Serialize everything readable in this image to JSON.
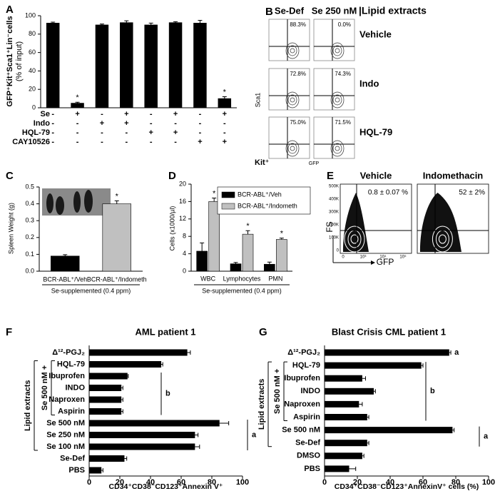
{
  "chart_data": [
    {
      "type": "bar",
      "panel": "A",
      "ylabel": [
        "GFP⁺Kit⁺Sca1⁺Lin⁻cells",
        "(% of input)"
      ],
      "values": [
        92,
        5,
        90,
        92.5,
        90,
        92.5,
        92,
        10
      ],
      "errors": [
        1,
        1,
        1,
        2,
        2,
        1,
        3,
        2
      ],
      "color": "#000000",
      "annotations": [
        null,
        "*",
        null,
        null,
        null,
        null,
        null,
        "*"
      ],
      "ylim": [
        0,
        100
      ],
      "yticks": [
        0,
        20,
        40,
        60,
        80,
        100
      ],
      "treatments": [
        {
          "name": "Se",
          "signs": [
            "-",
            "+",
            "-",
            "+",
            "-",
            "+",
            "-",
            "+"
          ]
        },
        {
          "name": "Indo",
          "signs": [
            "-",
            "-",
            "+",
            "+",
            "-",
            "-",
            "-",
            "-"
          ]
        },
        {
          "name": "HQL-79",
          "signs": [
            "-",
            "-",
            "-",
            "-",
            "+",
            "+",
            "-",
            "-"
          ]
        },
        {
          "name": "CAY10526",
          "signs": [
            "-",
            "-",
            "-",
            "-",
            "-",
            "-",
            "+",
            "+"
          ]
        }
      ]
    },
    {
      "type": "flow-grid",
      "panel": "B",
      "columns": [
        "Se-Def",
        "Se 250 nM"
      ],
      "header": "|Lipid extracts",
      "rows": [
        "Vehicle",
        "Indo",
        "HQL-79"
      ],
      "percentages": [
        [
          "88.3%",
          "0.0%"
        ],
        [
          "72.8%",
          "74.3%"
        ],
        [
          "75.0%",
          "71.5%"
        ]
      ],
      "ylabel": "Sca1",
      "corner_label": "Kit⁺",
      "xlabel": "GFP"
    },
    {
      "type": "bar",
      "panel": "C",
      "ylabel": "Spleen Weight (g)",
      "categories": [
        "BCR-ABL⁺/Veh",
        "BCR-ABL⁺/Indometh"
      ],
      "values": [
        0.09,
        0.4
      ],
      "errors": [
        0.008,
        0.018
      ],
      "colors": [
        "#000000",
        "#c0c0c0"
      ],
      "annotations": [
        null,
        "*"
      ],
      "ylim": [
        0,
        0.5
      ],
      "yticks": [
        {
          "value": 0,
          "label": "0.0"
        },
        0.1,
        0.2,
        0.3,
        0.4,
        0.5
      ],
      "group_label": "Se-supplemented (0.4 ppm)"
    },
    {
      "type": "grouped-bar",
      "panel": "D",
      "ylabel": "Cells (x1000/µl)",
      "categories": [
        "WBC",
        "Lymphocytes",
        "PMN"
      ],
      "series": [
        {
          "name": "BCR-ABL⁺/Veh",
          "color": "#000000",
          "values": [
            4.6,
            1.7,
            1.6
          ],
          "errors": [
            1.9,
            0.3,
            0.5
          ]
        },
        {
          "name": "BCR-ABL⁺/Indometh",
          "color": "#c0c0c0",
          "values": [
            16,
            8.5,
            7.3
          ],
          "errors": [
            0.8,
            0.8,
            0.3
          ],
          "annotations": [
            "*",
            "*",
            "*"
          ]
        }
      ],
      "ylim": [
        0,
        20
      ],
      "yticks": [
        0,
        4,
        8,
        12,
        16,
        20
      ],
      "group_label": "Se-supplemented (0.4 ppm)"
    },
    {
      "type": "flow-pair",
      "panel": "E",
      "titles": [
        "Vehicle",
        "Indomethacin"
      ],
      "percentages": [
        "0.8 ± 0.07 %",
        "52 ± 2%"
      ],
      "ylabel": "FS",
      "xlabel": "GFP",
      "fs_tick_labels": [
        "0",
        "100K",
        "200K",
        "300K",
        "400K",
        "500K"
      ],
      "gfp_tick_labels": [
        "0",
        "10³",
        "10⁴",
        "10⁵"
      ]
    },
    {
      "type": "hbar",
      "panel": "F",
      "title": "AML patient 1",
      "categories": [
        "Δ¹²-PGJ₂",
        "HQL-79",
        "Ibuprofen",
        "INDO",
        "Naproxen",
        "Aspirin",
        "Se 500 nM",
        "Se 250 nM",
        "Se 100 nM",
        "Se-Def",
        "PBS"
      ],
      "values": [
        64,
        47,
        25,
        21,
        21,
        21,
        85,
        69,
        69,
        23,
        8
      ],
      "errors": [
        2,
        1,
        0.5,
        1,
        1,
        1,
        6,
        2,
        3,
        1.5,
        1
      ],
      "color": "#000000",
      "xlim": [
        0,
        100
      ],
      "xticks": [
        0,
        20,
        40,
        60,
        80,
        100
      ],
      "xlabel": "CD34⁺CD38⁻CD123⁺Annexin V⁺",
      "bracket_labels": [
        "Lipid extracts",
        "Se 500 nM +"
      ],
      "groups": [
        {
          "label": "b",
          "rows": [
            2,
            5
          ]
        },
        {
          "label": "a",
          "rows": [
            6,
            8
          ]
        }
      ]
    },
    {
      "type": "hbar",
      "panel": "G",
      "title": "Blast Crisis CML patient 1",
      "categories": [
        "Δ¹²-PGJ₂",
        "HQL-79",
        "Ibuprofen",
        "INDO",
        "Naproxen",
        "Aspirin",
        "Se 500 nM",
        "Se-Def",
        "DMSO",
        "PBS"
      ],
      "values": [
        76,
        59,
        23,
        30,
        21,
        26,
        78,
        26,
        23,
        15
      ],
      "errors": [
        1,
        1,
        2,
        1,
        2,
        1,
        1,
        1,
        1,
        4
      ],
      "color": "#000000",
      "annotations": [
        "a",
        null,
        null,
        null,
        null,
        null,
        null,
        null,
        null,
        null
      ],
      "xlim": [
        0,
        100
      ],
      "xticks": [
        0,
        20,
        40,
        60,
        80,
        100
      ],
      "xlabel": "CD34⁺CD38⁻CD123⁺AnnexinV⁺ cells (%)",
      "bracket_labels": [
        "Lipid extracts",
        "Se 500 nM +"
      ],
      "groups": [
        {
          "label": "b",
          "rows": [
            1,
            5
          ]
        },
        {
          "label": "a",
          "rows": [
            6,
            7
          ]
        }
      ]
    }
  ]
}
